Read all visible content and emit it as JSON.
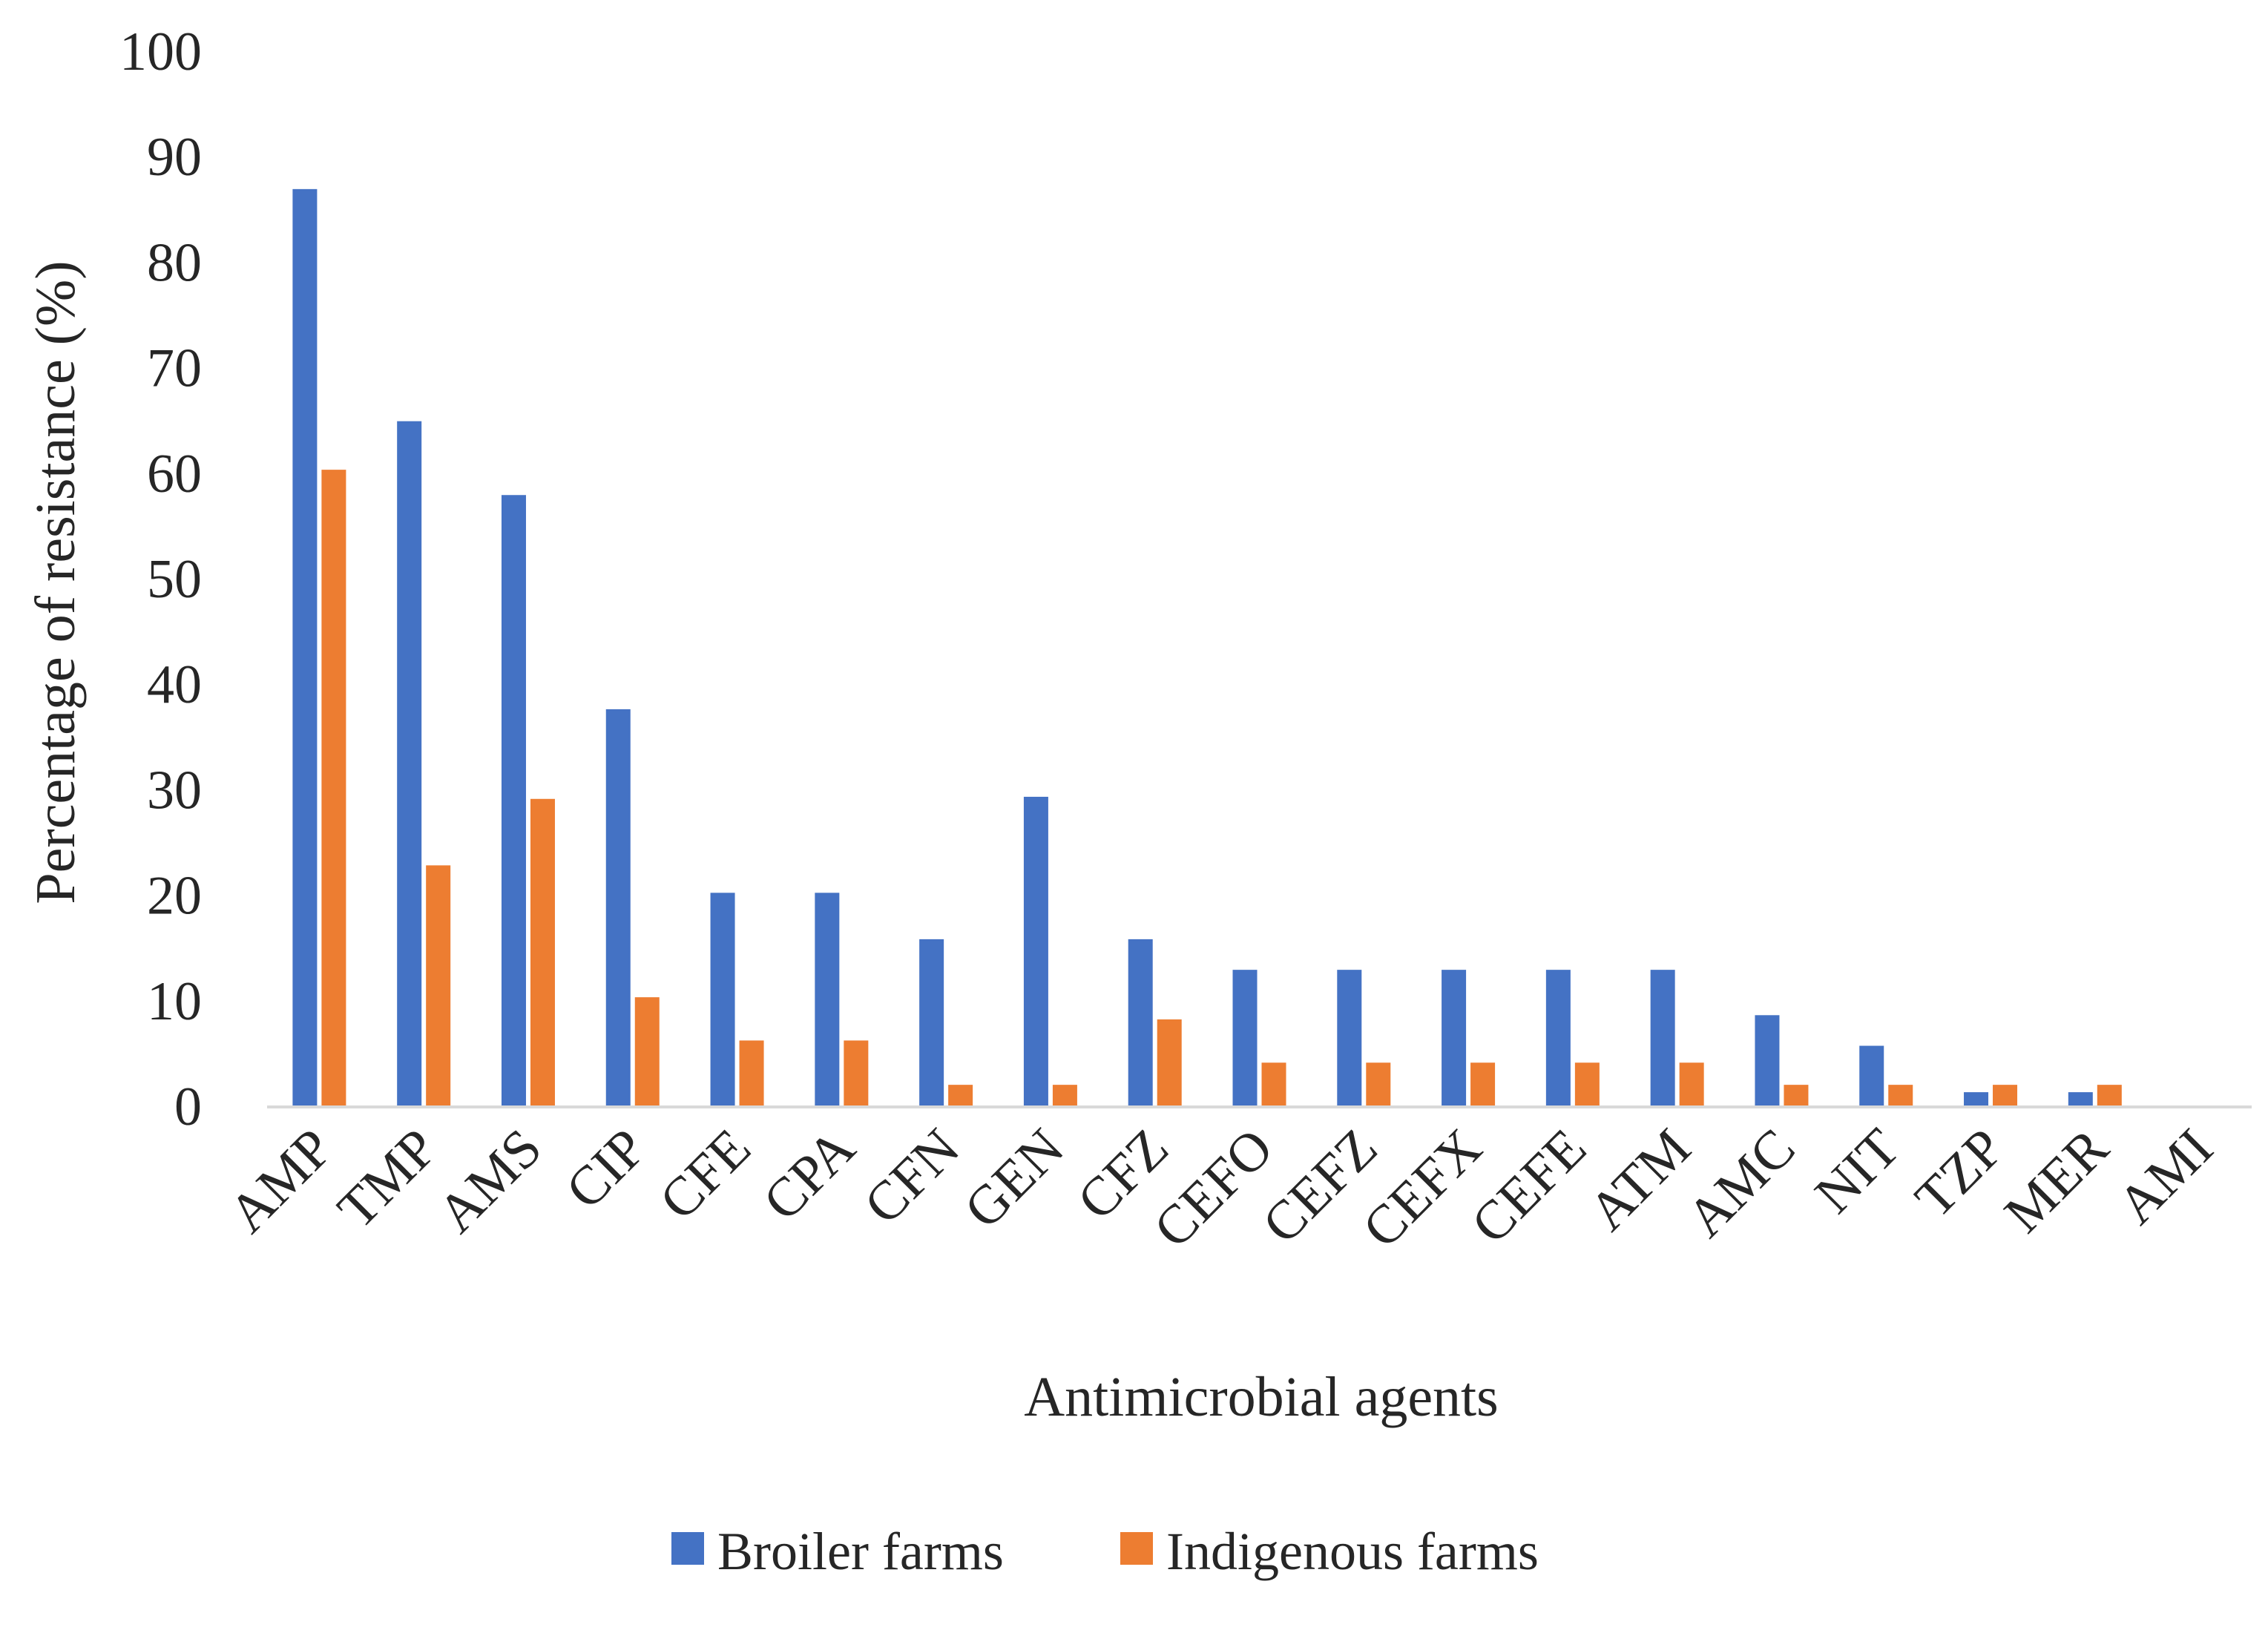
{
  "chart_data": {
    "type": "bar",
    "title": "",
    "xlabel": "Antimicrobial agents",
    "ylabel": "Percentage of resistance (%)",
    "ylim": [
      0,
      100
    ],
    "yticks": [
      0,
      10,
      20,
      30,
      40,
      50,
      60,
      70,
      80,
      90,
      100
    ],
    "grid": false,
    "legend_position": "bottom",
    "categories": [
      "AMP",
      "TMP",
      "AMS",
      "CIP",
      "CFE",
      "CPA",
      "CFN",
      "GEN",
      "CFZ",
      "CEFO",
      "CEFZ",
      "CEFX",
      "CEFE",
      "ATM",
      "AMC",
      "NIT",
      "TZP",
      "MER",
      "AMI"
    ],
    "series": [
      {
        "name": "Broiler farms",
        "color": "#4472C4",
        "values": [
          87,
          65,
          58,
          37.7,
          20.3,
          20.3,
          15.9,
          29.4,
          15.9,
          13,
          13,
          13,
          13,
          13,
          8.7,
          5.8,
          1.4,
          1.4,
          0
        ]
      },
      {
        "name": "Indigenous farms",
        "color": "#ED7D31",
        "values": [
          60.4,
          22.9,
          29.2,
          10.4,
          6.3,
          6.3,
          2.1,
          2.1,
          8.3,
          4.2,
          4.2,
          4.2,
          4.2,
          4.2,
          2.1,
          2.1,
          2.1,
          2.1,
          0
        ]
      }
    ],
    "axis_color": "#D9D9D9"
  }
}
